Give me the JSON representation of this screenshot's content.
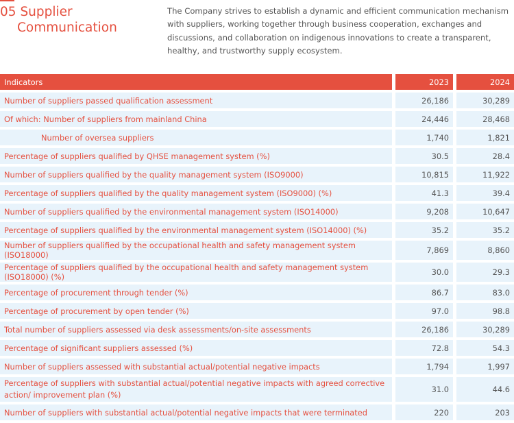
{
  "section": {
    "number": "05",
    "title_line1": "Supplier",
    "title_line2": "Communication",
    "intro": "The Company strives to establish a dynamic and efficient communication mechanism with suppliers, working together through business cooperation, exchanges and discussions, and collaboration on indigenous innovations to create a transparent, healthy, and trustworthy supply ecosystem."
  },
  "table": {
    "headers": [
      "Indicators",
      "2023",
      "2024"
    ],
    "rows": [
      {
        "label": "Number of suppliers passed qualification assessment",
        "v2023": "26,186",
        "v2024": "30,289"
      },
      {
        "label": "Of which: Number of suppliers from mainland China",
        "v2023": "24,446",
        "v2024": "28,468"
      },
      {
        "label": "Number of oversea suppliers",
        "v2023": "1,740",
        "v2024": "1,821"
      },
      {
        "label": "Percentage of suppliers qualified by QHSE management system (%)",
        "v2023": "30.5",
        "v2024": "28.4"
      },
      {
        "label": "Number of suppliers qualified by the quality management system (ISO9000)",
        "v2023": "10,815",
        "v2024": "11,922"
      },
      {
        "label": "Percentage of suppliers qualified by the quality management system (ISO9000) (%)",
        "v2023": "41.3",
        "v2024": "39.4"
      },
      {
        "label": "Number of suppliers qualified by the environmental management system (ISO14000)",
        "v2023": "9,208",
        "v2024": "10,647"
      },
      {
        "label": "Percentage of suppliers qualified by the environmental management system (ISO14000) (%)",
        "v2023": "35.2",
        "v2024": "35.2"
      },
      {
        "label": "Number of suppliers qualified by the occupational health and safety management system (ISO18000)",
        "v2023": "7,869",
        "v2024": "8,860"
      },
      {
        "label": "Percentage of suppliers qualified by the occupational health and safety management system (ISO18000) (%)",
        "v2023": "30.0",
        "v2024": "29.3"
      },
      {
        "label": "Percentage of procurement through tender (%)",
        "v2023": "86.7",
        "v2024": "83.0"
      },
      {
        "label": "Percentage of procurement by open tender (%)",
        "v2023": "97.0",
        "v2024": "98.8"
      },
      {
        "label": "Total number of suppliers assessed via desk assessments/on-site assessments",
        "v2023": "26,186",
        "v2024": "30,289"
      },
      {
        "label": "Percentage of significant suppliers assessed (%)",
        "v2023": "72.8",
        "v2024": "54.3"
      },
      {
        "label": "Number of suppliers assessed with substantial actual/potential negative impacts",
        "v2023": "1,794",
        "v2024": "1,997"
      },
      {
        "label": "Percentage of suppliers with substantial actual/potential negative impacts with agreed corrective action/ improvement plan (%)",
        "v2023": "31.0",
        "v2024": "44.6"
      },
      {
        "label": "Number of suppliers with substantial actual/potential negative impacts that were terminated",
        "v2023": "220",
        "v2024": "203"
      }
    ]
  }
}
